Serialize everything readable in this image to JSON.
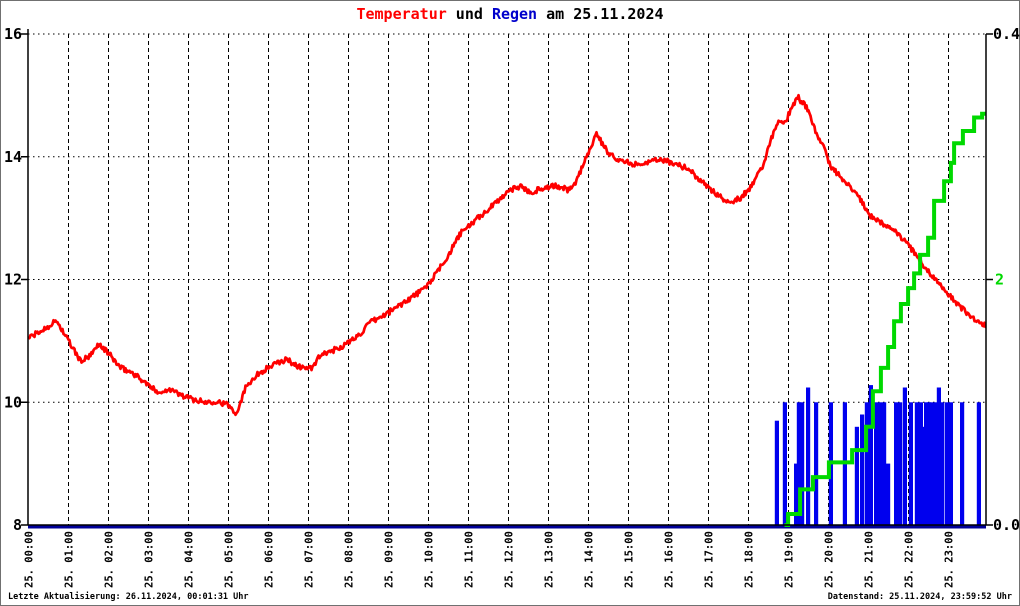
{
  "title": {
    "temp_word": "Temperatur",
    "mid_word": " und ",
    "rain_word": "Regen",
    "suffix": " am 25.11.2024"
  },
  "footer": {
    "left": "Letzte Aktualisierung: 26.11.2024, 00:01:31 Uhr",
    "right": "Datenstand: 25.11.2024, 23:59:52 Uhr"
  },
  "colors": {
    "temperature": "#ff0000",
    "rain_word": "#0000cc",
    "rain_bars": "#0000ee",
    "rain_sum_line": "#00d900",
    "zero_line": "#000099",
    "grid": "#000000",
    "text": "#000000"
  },
  "chart_data": {
    "type": "line+bar",
    "title": "Temperatur und Regen am 25.11.2024",
    "x_range_hours": [
      0,
      24
    ],
    "left_axis": {
      "min": 8,
      "max": 16,
      "tick_values": [
        16,
        14,
        12,
        10,
        8
      ],
      "tick_labels": [
        "16",
        "14",
        "12",
        "10",
        "8"
      ]
    },
    "right_axis_rain_rate": {
      "min": 0.0,
      "max": 0.4,
      "top_label": "0.4",
      "bottom_label": "0.0"
    },
    "right_axis_rain_sum": {
      "min": 0,
      "max": 4,
      "mid_tick_value": 2,
      "mid_tick_label": "2"
    },
    "x_tick_labels": [
      "25. 00:00",
      "25. 01:00",
      "25. 02:00",
      "25. 03:00",
      "25. 04:00",
      "25. 05:00",
      "25. 06:00",
      "25. 07:00",
      "25. 08:00",
      "25. 09:00",
      "25. 10:00",
      "25. 11:00",
      "25. 12:00",
      "25. 13:00",
      "25. 14:00",
      "25. 15:00",
      "25. 16:00",
      "25. 17:00",
      "25. 18:00",
      "25. 19:00",
      "25. 20:00",
      "25. 21:00",
      "25. 22:00",
      "25. 23:00"
    ],
    "grid": {
      "vertical_hour_lines": true,
      "horizontal_lines_at": [
        10,
        12,
        14,
        16
      ]
    },
    "series": {
      "temperature": {
        "name": "Temperatur",
        "axis": "left",
        "style": "jagged-line",
        "points": [
          [
            0,
            11.05
          ],
          [
            0.3,
            11.15
          ],
          [
            0.7,
            11.33
          ],
          [
            1,
            11
          ],
          [
            1.3,
            10.67
          ],
          [
            1.55,
            10.75
          ],
          [
            1.75,
            10.95
          ],
          [
            2,
            10.8
          ],
          [
            2.3,
            10.56
          ],
          [
            2.6,
            10.48
          ],
          [
            2.9,
            10.33
          ],
          [
            3.1,
            10.22
          ],
          [
            3.35,
            10.15
          ],
          [
            3.5,
            10.23
          ],
          [
            3.8,
            10.12
          ],
          [
            4.1,
            10.05
          ],
          [
            4.4,
            10
          ],
          [
            4.7,
            10.02
          ],
          [
            5,
            9.95
          ],
          [
            5.2,
            9.82
          ],
          [
            5.45,
            10.28
          ],
          [
            5.7,
            10.44
          ],
          [
            5.95,
            10.55
          ],
          [
            6.2,
            10.63
          ],
          [
            6.45,
            10.7
          ],
          [
            6.75,
            10.58
          ],
          [
            7.1,
            10.55
          ],
          [
            7.25,
            10.73
          ],
          [
            7.5,
            10.82
          ],
          [
            7.75,
            10.88
          ],
          [
            8,
            10.97
          ],
          [
            8.3,
            11.12
          ],
          [
            8.55,
            11.3
          ],
          [
            8.85,
            11.4
          ],
          [
            9.2,
            11.55
          ],
          [
            9.55,
            11.7
          ],
          [
            9.9,
            11.85
          ],
          [
            10.2,
            12.1
          ],
          [
            10.5,
            12.4
          ],
          [
            10.8,
            12.75
          ],
          [
            11.2,
            12.98
          ],
          [
            11.6,
            13.2
          ],
          [
            12,
            13.45
          ],
          [
            12.3,
            13.52
          ],
          [
            12.55,
            13.42
          ],
          [
            12.9,
            13.5
          ],
          [
            13.2,
            13.52
          ],
          [
            13.5,
            13.46
          ],
          [
            13.7,
            13.6
          ],
          [
            13.95,
            14
          ],
          [
            14.2,
            14.38
          ],
          [
            14.45,
            14.1
          ],
          [
            14.75,
            13.95
          ],
          [
            15.1,
            13.88
          ],
          [
            15.5,
            13.92
          ],
          [
            15.85,
            13.95
          ],
          [
            16.2,
            13.88
          ],
          [
            16.5,
            13.8
          ],
          [
            16.85,
            13.58
          ],
          [
            17.15,
            13.42
          ],
          [
            17.5,
            13.26
          ],
          [
            17.8,
            13.33
          ],
          [
            18.05,
            13.5
          ],
          [
            18.35,
            13.85
          ],
          [
            18.6,
            14.35
          ],
          [
            18.75,
            14.55
          ],
          [
            18.95,
            14.6
          ],
          [
            19.1,
            14.85
          ],
          [
            19.25,
            14.96
          ],
          [
            19.45,
            14.8
          ],
          [
            19.65,
            14.45
          ],
          [
            19.85,
            14.2
          ],
          [
            20.05,
            13.85
          ],
          [
            20.3,
            13.68
          ],
          [
            20.55,
            13.5
          ],
          [
            20.8,
            13.3
          ],
          [
            21.05,
            13.03
          ],
          [
            21.3,
            12.93
          ],
          [
            21.55,
            12.85
          ],
          [
            21.8,
            12.7
          ],
          [
            22,
            12.55
          ],
          [
            22.3,
            12.3
          ],
          [
            22.65,
            12
          ],
          [
            23,
            11.75
          ],
          [
            23.35,
            11.52
          ],
          [
            23.7,
            11.32
          ],
          [
            23.98,
            11.25
          ]
        ]
      },
      "rain_sum": {
        "name": "Regensumme",
        "axis": "right_sum",
        "style": "step-line",
        "points": [
          [
            18.9,
            0
          ],
          [
            18.99,
            0.09
          ],
          [
            19.29,
            0.29
          ],
          [
            19.61,
            0.39
          ],
          [
            20.01,
            0.51
          ],
          [
            20.59,
            0.61
          ],
          [
            20.94,
            0.8
          ],
          [
            21.11,
            1.09
          ],
          [
            21.31,
            1.28
          ],
          [
            21.49,
            1.45
          ],
          [
            21.64,
            1.66
          ],
          [
            21.81,
            1.8
          ],
          [
            21.99,
            1.93
          ],
          [
            22.14,
            2.05
          ],
          [
            22.29,
            2.2
          ],
          [
            22.49,
            2.34
          ],
          [
            22.64,
            2.64
          ],
          [
            22.89,
            2.8
          ],
          [
            23.06,
            2.95
          ],
          [
            23.14,
            3.11
          ],
          [
            23.36,
            3.21
          ],
          [
            23.64,
            3.32
          ],
          [
            23.84,
            3.35
          ]
        ]
      },
      "rain_rate": {
        "name": "Regen",
        "axis": "right_rate",
        "style": "bars",
        "bars": [
          [
            18.71,
            0.085
          ],
          [
            18.91,
            0.1
          ],
          [
            19.19,
            0.05
          ],
          [
            19.26,
            0.1
          ],
          [
            19.34,
            0.1
          ],
          [
            19.49,
            0.112
          ],
          [
            19.69,
            0.1
          ],
          [
            20.06,
            0.1
          ],
          [
            20.41,
            0.1
          ],
          [
            20.71,
            0.08
          ],
          [
            20.84,
            0.09
          ],
          [
            20.96,
            0.1
          ],
          [
            21.06,
            0.114
          ],
          [
            21.19,
            0.1
          ],
          [
            21.29,
            0.1
          ],
          [
            21.39,
            0.1
          ],
          [
            21.49,
            0.05
          ],
          [
            21.69,
            0.1
          ],
          [
            21.79,
            0.1
          ],
          [
            21.91,
            0.112
          ],
          [
            22.06,
            0.1
          ],
          [
            22.21,
            0.1
          ],
          [
            22.31,
            0.1
          ],
          [
            22.36,
            0.08
          ],
          [
            22.44,
            0.1
          ],
          [
            22.51,
            0.1
          ],
          [
            22.59,
            0.1
          ],
          [
            22.69,
            0.1
          ],
          [
            22.76,
            0.112
          ],
          [
            22.84,
            0.1
          ],
          [
            22.96,
            0.1
          ],
          [
            23.06,
            0.1
          ],
          [
            23.34,
            0.1
          ],
          [
            23.76,
            0.1
          ]
        ]
      }
    }
  }
}
